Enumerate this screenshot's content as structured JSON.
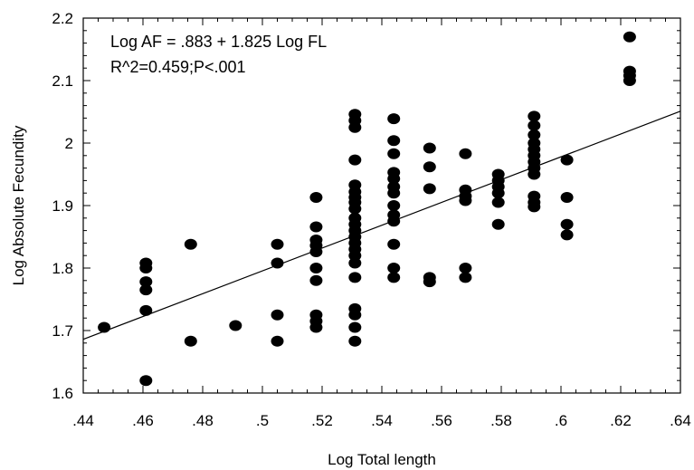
{
  "chart_data": {
    "type": "scatter",
    "title": "",
    "xlabel": "Log Total length",
    "ylabel": "Log Absolute Fecundity",
    "xlim": [
      0.44,
      0.64
    ],
    "ylim": [
      1.6,
      2.2
    ],
    "x_ticks": [
      0.44,
      0.46,
      0.48,
      0.5,
      0.52,
      0.54,
      0.56,
      0.58,
      0.6,
      0.62,
      0.64
    ],
    "x_tick_labels": [
      ".44",
      ".46",
      ".48",
      ".5",
      ".52",
      ".54",
      ".56",
      ".58",
      ".6",
      ".62",
      ".64"
    ],
    "y_ticks": [
      1.6,
      1.7,
      1.8,
      1.9,
      2.0,
      2.1,
      2.2
    ],
    "y_tick_labels": [
      "1.6",
      "1.7",
      "1.8",
      "1.9",
      "2",
      "2.1",
      "2.2"
    ],
    "annotations": [
      "Log AF = .883 + 1.825 Log FL",
      "R^2=0.459;P<.001"
    ],
    "regression": {
      "intercept": 0.883,
      "slope": 1.825
    },
    "grid": false,
    "points": [
      [
        0.447,
        1.705
      ],
      [
        0.461,
        1.808
      ],
      [
        0.461,
        1.8
      ],
      [
        0.461,
        1.778
      ],
      [
        0.461,
        1.765
      ],
      [
        0.461,
        1.732
      ],
      [
        0.461,
        1.62
      ],
      [
        0.476,
        1.838
      ],
      [
        0.476,
        1.683
      ],
      [
        0.491,
        1.708
      ],
      [
        0.505,
        1.838
      ],
      [
        0.505,
        1.808
      ],
      [
        0.505,
        1.725
      ],
      [
        0.505,
        1.683
      ],
      [
        0.518,
        1.913
      ],
      [
        0.518,
        1.866
      ],
      [
        0.518,
        1.845
      ],
      [
        0.518,
        1.836
      ],
      [
        0.518,
        1.826
      ],
      [
        0.518,
        1.8
      ],
      [
        0.518,
        1.78
      ],
      [
        0.518,
        1.725
      ],
      [
        0.518,
        1.715
      ],
      [
        0.518,
        1.705
      ],
      [
        0.531,
        2.046
      ],
      [
        0.531,
        2.036
      ],
      [
        0.531,
        2.025
      ],
      [
        0.531,
        1.973
      ],
      [
        0.531,
        1.933
      ],
      [
        0.531,
        1.922
      ],
      [
        0.531,
        1.913
      ],
      [
        0.531,
        1.905
      ],
      [
        0.531,
        1.895
      ],
      [
        0.531,
        1.88
      ],
      [
        0.531,
        1.87
      ],
      [
        0.531,
        1.86
      ],
      [
        0.531,
        1.85
      ],
      [
        0.531,
        1.84
      ],
      [
        0.531,
        1.83
      ],
      [
        0.531,
        1.82
      ],
      [
        0.531,
        1.808
      ],
      [
        0.531,
        1.785
      ],
      [
        0.531,
        1.735
      ],
      [
        0.531,
        1.725
      ],
      [
        0.531,
        1.705
      ],
      [
        0.531,
        1.683
      ],
      [
        0.544,
        2.039
      ],
      [
        0.544,
        2.004
      ],
      [
        0.544,
        1.983
      ],
      [
        0.544,
        1.953
      ],
      [
        0.544,
        1.943
      ],
      [
        0.544,
        1.93
      ],
      [
        0.544,
        1.92
      ],
      [
        0.544,
        1.9
      ],
      [
        0.544,
        1.885
      ],
      [
        0.544,
        1.875
      ],
      [
        0.544,
        1.838
      ],
      [
        0.544,
        1.8
      ],
      [
        0.544,
        1.785
      ],
      [
        0.556,
        1.992
      ],
      [
        0.556,
        1.962
      ],
      [
        0.556,
        1.927
      ],
      [
        0.556,
        1.785
      ],
      [
        0.556,
        1.778
      ],
      [
        0.568,
        1.983
      ],
      [
        0.568,
        1.925
      ],
      [
        0.568,
        1.915
      ],
      [
        0.568,
        1.908
      ],
      [
        0.568,
        1.8
      ],
      [
        0.568,
        1.785
      ],
      [
        0.579,
        1.95
      ],
      [
        0.579,
        1.94
      ],
      [
        0.579,
        1.93
      ],
      [
        0.579,
        1.92
      ],
      [
        0.579,
        1.905
      ],
      [
        0.579,
        1.87
      ],
      [
        0.591,
        2.043
      ],
      [
        0.591,
        2.028
      ],
      [
        0.591,
        2.013
      ],
      [
        0.591,
        2.0
      ],
      [
        0.591,
        1.99
      ],
      [
        0.591,
        1.98
      ],
      [
        0.591,
        1.97
      ],
      [
        0.591,
        1.96
      ],
      [
        0.591,
        1.95
      ],
      [
        0.591,
        1.915
      ],
      [
        0.591,
        1.905
      ],
      [
        0.591,
        1.898
      ],
      [
        0.602,
        1.973
      ],
      [
        0.602,
        1.913
      ],
      [
        0.602,
        1.87
      ],
      [
        0.602,
        1.853
      ],
      [
        0.623,
        2.17
      ],
      [
        0.623,
        2.115
      ],
      [
        0.623,
        2.108
      ],
      [
        0.623,
        2.1
      ]
    ]
  }
}
